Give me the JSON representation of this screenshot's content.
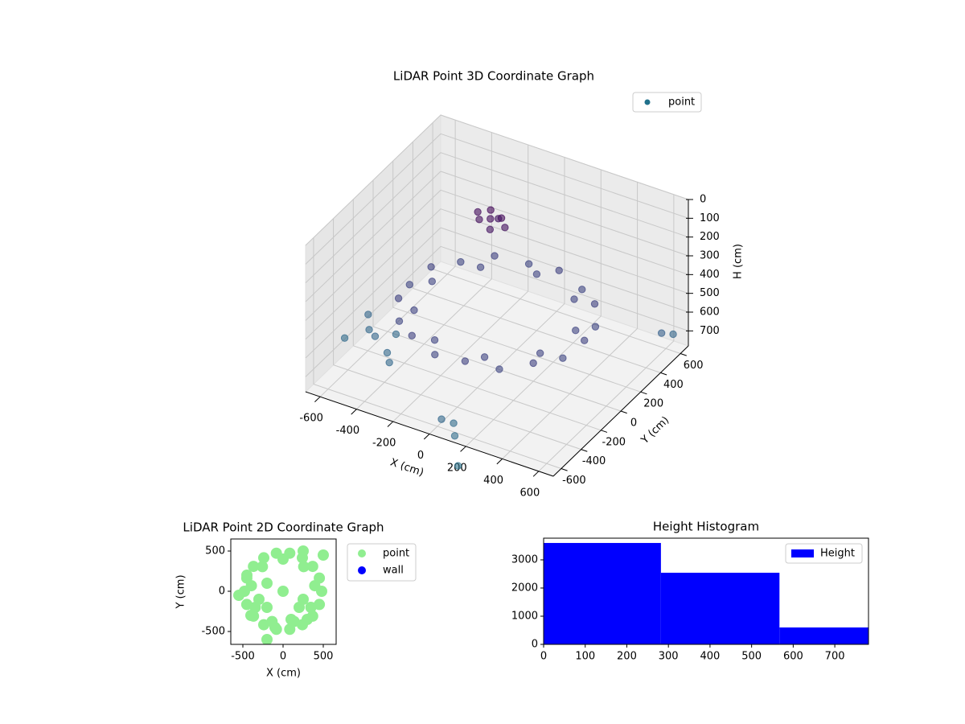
{
  "chart_data": [
    {
      "type": "scatter3d",
      "title": "LiDAR Point 3D Coordinate Graph",
      "xlabel": "X (cm)",
      "ylabel": "Y (cm)",
      "zlabel": "H (cm)",
      "xlim": [
        -680,
        680
      ],
      "ylim": [
        -680,
        680
      ],
      "zlim": [
        0,
        780
      ],
      "zinvert": true,
      "xticks": [
        -600,
        -400,
        -200,
        0,
        200,
        400,
        600
      ],
      "yticks": [
        -600,
        -400,
        -200,
        0,
        200,
        400,
        600
      ],
      "zticks": [
        0,
        100,
        200,
        300,
        400,
        500,
        600,
        700
      ],
      "cmap": "viridis",
      "clim": [
        150,
        1800
      ],
      "legend": "upper right",
      "series": [
        {
          "name": "point",
          "color": "#21718c",
          "x": [
            480,
            451,
            368,
            240,
            83,
            -83,
            -240,
            -368,
            -451,
            -480,
            -451,
            -368,
            -240,
            -83,
            83,
            240,
            368,
            451,
            394,
            257,
            0,
            -257,
            -394,
            -346,
            -137,
            137,
            346,
            -200,
            -150,
            -250,
            -180,
            -220,
            -120,
            -280,
            -200,
            -700,
            -620,
            -560,
            -500,
            -450,
            -680,
            100,
            150,
            50,
            250,
            620,
            640,
            -400
          ],
          "y": [
            0,
            164,
            309,
            416,
            473,
            473,
            416,
            309,
            164,
            0,
            -164,
            -309,
            -416,
            -473,
            -473,
            -416,
            -309,
            -164,
            69,
            306,
            400,
            306,
            69,
            -200,
            -376,
            -376,
            -200,
            300,
            320,
            280,
            260,
            340,
            300,
            320,
            380,
            -250,
            -150,
            -200,
            -100,
            -280,
            -50,
            -620,
            -700,
            -650,
            -850,
            520,
            600,
            -350
          ],
          "z": [
            470,
            490,
            470,
            490,
            470,
            490,
            470,
            490,
            470,
            490,
            470,
            490,
            470,
            490,
            470,
            490,
            470,
            490,
            480,
            480,
            480,
            480,
            480,
            480,
            480,
            480,
            480,
            200,
            190,
            210,
            230,
            180,
            220,
            200,
            240,
            720,
            700,
            690,
            710,
            700,
            690,
            720,
            730,
            700,
            780,
            650,
            690,
            700
          ]
        }
      ]
    },
    {
      "type": "scatter",
      "title": "LiDAR Point 2D Coordinate Graph",
      "xlabel": "X (cm)",
      "ylabel": "Y (cm)",
      "xlim": [
        -650,
        660
      ],
      "ylim": [
        -660,
        650
      ],
      "xticks": [
        -500,
        0,
        500
      ],
      "yticks": [
        -500,
        0,
        500
      ],
      "legend": "outside right",
      "series": [
        {
          "name": "point",
          "color": "#90ee90",
          "x": [
            480,
            451,
            368,
            240,
            83,
            -83,
            -240,
            -368,
            -451,
            -480,
            -451,
            -368,
            -240,
            -83,
            83,
            240,
            368,
            451,
            394,
            257,
            0,
            -257,
            -394,
            -346,
            -137,
            137,
            346,
            0,
            -200,
            200,
            -200,
            100,
            -300,
            -100,
            250,
            -400,
            300,
            -450,
            -550,
            250,
            500,
            -200
          ],
          "y": [
            0,
            164,
            309,
            416,
            473,
            473,
            416,
            309,
            164,
            0,
            -164,
            -309,
            -416,
            -473,
            -473,
            -416,
            -309,
            -164,
            69,
            306,
            400,
            306,
            69,
            -200,
            -376,
            -376,
            -200,
            0,
            -200,
            -200,
            100,
            -350,
            -100,
            -450,
            -100,
            -300,
            -350,
            200,
            -50,
            500,
            450,
            -600
          ]
        },
        {
          "name": "wall",
          "color": "#0000ff",
          "x": [],
          "y": []
        }
      ]
    },
    {
      "type": "histogram",
      "title": "Height Histogram",
      "bins": [
        0,
        282,
        567,
        781
      ],
      "values": [
        3600,
        2543,
        600
      ],
      "name": "Height",
      "color": "#0000ff",
      "xlim": [
        0,
        781
      ],
      "ylim": [
        0,
        3770
      ],
      "xticks": [
        0,
        100,
        200,
        300,
        400,
        500,
        600,
        700
      ],
      "yticks": [
        0,
        1000,
        2000,
        3000
      ],
      "legend": "upper right"
    }
  ]
}
